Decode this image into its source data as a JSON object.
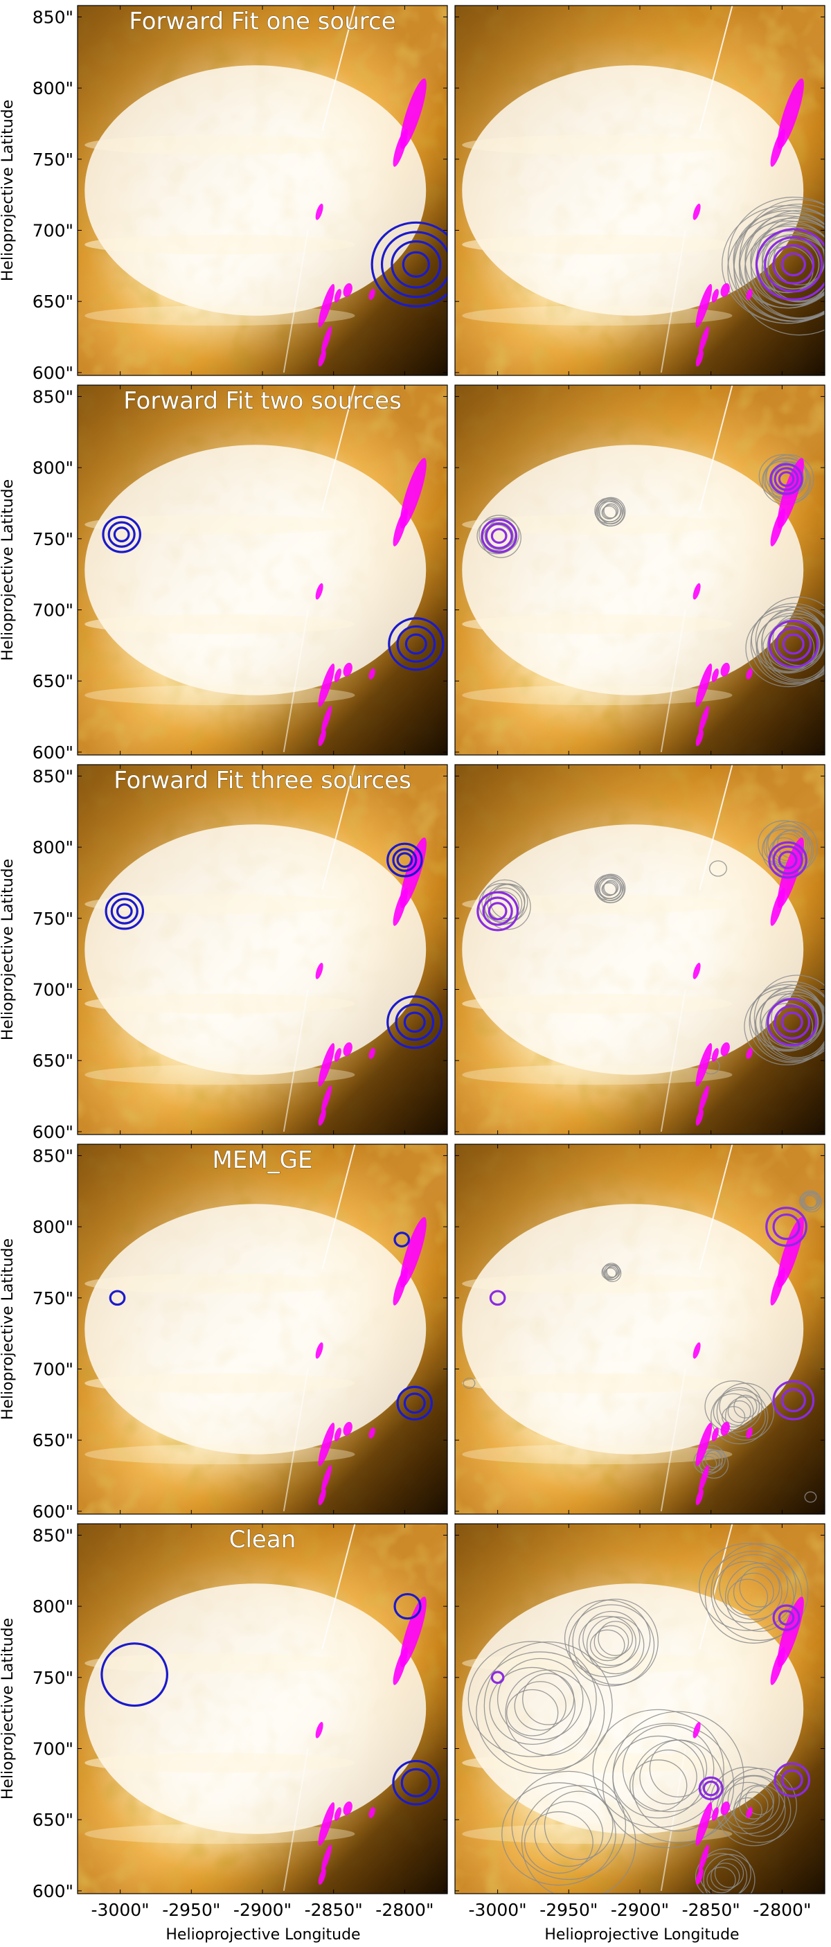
{
  "figure": {
    "ylabel": "Helioprojective Latitude",
    "xlabel": "Helioprojective Longitude"
  },
  "colors": {
    "background_bright": "#fffdf7",
    "background_mid": "#f3b23a",
    "background_dark": "#4a2a00",
    "reconstruction_contour": "#1a1acc",
    "ensemble_mean_contour": "#8a2be2",
    "ensemble_member_contour": "#8c8c8c",
    "reference_contour": "#ff00ff"
  },
  "chart_data": {
    "type": "contour",
    "xlim": [
      -3030,
      -2770
    ],
    "ylim": [
      598,
      858
    ],
    "x_ticks": [
      -3000,
      -2950,
      -2900,
      -2850,
      -2800
    ],
    "x_tick_labels": [
      "-3000\"",
      "-2950\"",
      "-2900\"",
      "-2850\"",
      "-2800\""
    ],
    "y_ticks": [
      600,
      650,
      700,
      750,
      800,
      850
    ],
    "y_tick_labels": [
      "600\"",
      "650\"",
      "700\"",
      "750\"",
      "800\"",
      "850\""
    ],
    "rows": [
      {
        "title": "Forward Fit one source",
        "sources": [
          {
            "x": -2792,
            "y": 676,
            "rings": [
              9,
              17,
              24,
              31
            ]
          }
        ],
        "right_sources": [
          {
            "x": -2792,
            "y": 676,
            "rings": [
              8,
              14,
              20,
              26
            ]
          }
        ],
        "gray_clusters": [
          {
            "x": -2792,
            "y": 676,
            "radii": [
              18,
              22,
              26,
              30,
              34,
              38,
              42,
              46
            ],
            "spread": 6
          }
        ]
      },
      {
        "title": "Forward Fit two sources",
        "sources": [
          {
            "x": -2999,
            "y": 753,
            "rings": [
              5,
              9,
              13
            ]
          },
          {
            "x": -2792,
            "y": 676,
            "rings": [
              7,
              13,
              19
            ]
          }
        ],
        "right_sources": [
          {
            "x": -2999,
            "y": 752,
            "rings": [
              5,
              9,
              12
            ]
          },
          {
            "x": -2797,
            "y": 792,
            "rings": [
              5,
              8,
              11
            ]
          },
          {
            "x": -2792,
            "y": 676,
            "rings": [
              7,
              12,
              17
            ]
          }
        ],
        "gray_clusters": [
          {
            "x": -2999,
            "y": 752,
            "radii": [
              10,
              14
            ],
            "spread": 2
          },
          {
            "x": -2921,
            "y": 769,
            "radii": [
              5,
              8,
              10
            ],
            "spread": 1
          },
          {
            "x": -2797,
            "y": 792,
            "radii": [
              10,
              14,
              17
            ],
            "spread": 3
          },
          {
            "x": -2792,
            "y": 676,
            "radii": [
              18,
              22,
              26,
              30
            ],
            "spread": 5
          }
        ]
      },
      {
        "title": "Forward Fit three sources",
        "sources": [
          {
            "x": -2997,
            "y": 755,
            "rings": [
              5,
              9,
              13
            ]
          },
          {
            "x": -2800,
            "y": 791,
            "rings": [
              5,
              8,
              12
            ]
          },
          {
            "x": -2793,
            "y": 677,
            "rings": [
              7,
              13,
              19
            ]
          }
        ],
        "right_sources": [
          {
            "x": -3000,
            "y": 755,
            "rings": [
              6,
              10,
              14
            ]
          },
          {
            "x": -2796,
            "y": 791,
            "rings": [
              6,
              10,
              13
            ]
          },
          {
            "x": -2793,
            "y": 677,
            "rings": [
              7,
              12,
              17
            ]
          }
        ],
        "gray_clusters": [
          {
            "x": -2995,
            "y": 760,
            "radii": [
              12,
              16
            ],
            "spread": 3
          },
          {
            "x": -2921,
            "y": 771,
            "radii": [
              5,
              8,
              10
            ],
            "spread": 1
          },
          {
            "x": -2796,
            "y": 800,
            "radii": [
              10,
              14,
              18
            ],
            "spread": 4
          },
          {
            "x": -2793,
            "y": 677,
            "radii": [
              18,
              22,
              26,
              30
            ],
            "spread": 5
          },
          {
            "x": -2845,
            "y": 785,
            "radii": [
              6
            ],
            "spread": 0
          },
          {
            "x": -2850,
            "y": 646,
            "radii": [
              6
            ],
            "spread": 0
          }
        ]
      },
      {
        "title": "MEM_GE",
        "sources": [
          {
            "x": -3002,
            "y": 750,
            "rings": [
              5
            ]
          },
          {
            "x": -2802,
            "y": 791,
            "rings": [
              5
            ]
          },
          {
            "x": -2793,
            "y": 676,
            "rings": [
              7,
              12
            ]
          }
        ],
        "right_sources": [
          {
            "x": -3000,
            "y": 750,
            "rings": [
              5
            ]
          },
          {
            "x": -2797,
            "y": 800,
            "rings": [
              9,
              14
            ]
          },
          {
            "x": -2792,
            "y": 678,
            "rings": [
              8,
              14
            ]
          }
        ],
        "gray_clusters": [
          {
            "x": -2920,
            "y": 768,
            "radii": [
              4,
              6
            ],
            "spread": 1
          },
          {
            "x": -2780,
            "y": 818,
            "radii": [
              5,
              7
            ],
            "spread": 1
          },
          {
            "x": -2830,
            "y": 670,
            "radii": [
              8,
              14,
              20
            ],
            "spread": 6
          },
          {
            "x": -2850,
            "y": 635,
            "radii": [
              6,
              10
            ],
            "spread": 3
          },
          {
            "x": -3020,
            "y": 690,
            "radii": [
              4
            ],
            "spread": 0
          },
          {
            "x": -2780,
            "y": 610,
            "radii": [
              4
            ],
            "spread": 0
          }
        ]
      },
      {
        "title": "Clean",
        "sources": [
          {
            "x": -2990,
            "y": 752,
            "rings": [
              23
            ]
          },
          {
            "x": -2798,
            "y": 800,
            "rings": [
              9
            ]
          },
          {
            "x": -2792,
            "y": 676,
            "rings": [
              10,
              16
            ]
          }
        ],
        "right_sources": [
          {
            "x": -3000,
            "y": 750,
            "rings": [
              4
            ]
          },
          {
            "x": -2797,
            "y": 792,
            "rings": [
              5,
              9
            ]
          },
          {
            "x": -2850,
            "y": 672,
            "rings": [
              5,
              8
            ]
          },
          {
            "x": -2793,
            "y": 678,
            "rings": [
              7,
              12
            ]
          }
        ],
        "gray_clusters": [
          {
            "x": -2920,
            "y": 775,
            "radii": [
              12,
              20,
              30
            ],
            "spread": 4
          },
          {
            "x": -2820,
            "y": 810,
            "radii": [
              14,
              24,
              34
            ],
            "spread": 6
          },
          {
            "x": -2970,
            "y": 730,
            "radii": [
              18,
              30,
              45
            ],
            "spread": 8
          },
          {
            "x": -2880,
            "y": 680,
            "radii": [
              20,
              32,
              46
            ],
            "spread": 10
          },
          {
            "x": -2820,
            "y": 660,
            "radii": [
              10,
              18,
              26
            ],
            "spread": 6
          },
          {
            "x": -2950,
            "y": 640,
            "radii": [
              24,
              40
            ],
            "spread": 10
          },
          {
            "x": -2840,
            "y": 610,
            "radii": [
              10,
              18
            ],
            "spread": 4
          }
        ]
      }
    ],
    "reference_blobs": [
      {
        "x": -2794,
        "y": 782,
        "w": 5,
        "h": 26
      },
      {
        "x": -2803,
        "y": 758,
        "w": 3,
        "h": 14
      },
      {
        "x": -2860,
        "y": 713,
        "w": 2,
        "h": 6
      },
      {
        "x": -2855,
        "y": 647,
        "w": 3,
        "h": 16
      },
      {
        "x": -2855,
        "y": 623,
        "w": 2,
        "h": 10
      },
      {
        "x": -2847,
        "y": 654,
        "w": 2,
        "h": 5
      },
      {
        "x": -2840,
        "y": 658,
        "w": 3,
        "h": 5
      },
      {
        "x": -2823,
        "y": 655,
        "w": 2,
        "h": 4
      },
      {
        "x": -2858,
        "y": 610,
        "w": 2,
        "h": 6
      }
    ]
  }
}
